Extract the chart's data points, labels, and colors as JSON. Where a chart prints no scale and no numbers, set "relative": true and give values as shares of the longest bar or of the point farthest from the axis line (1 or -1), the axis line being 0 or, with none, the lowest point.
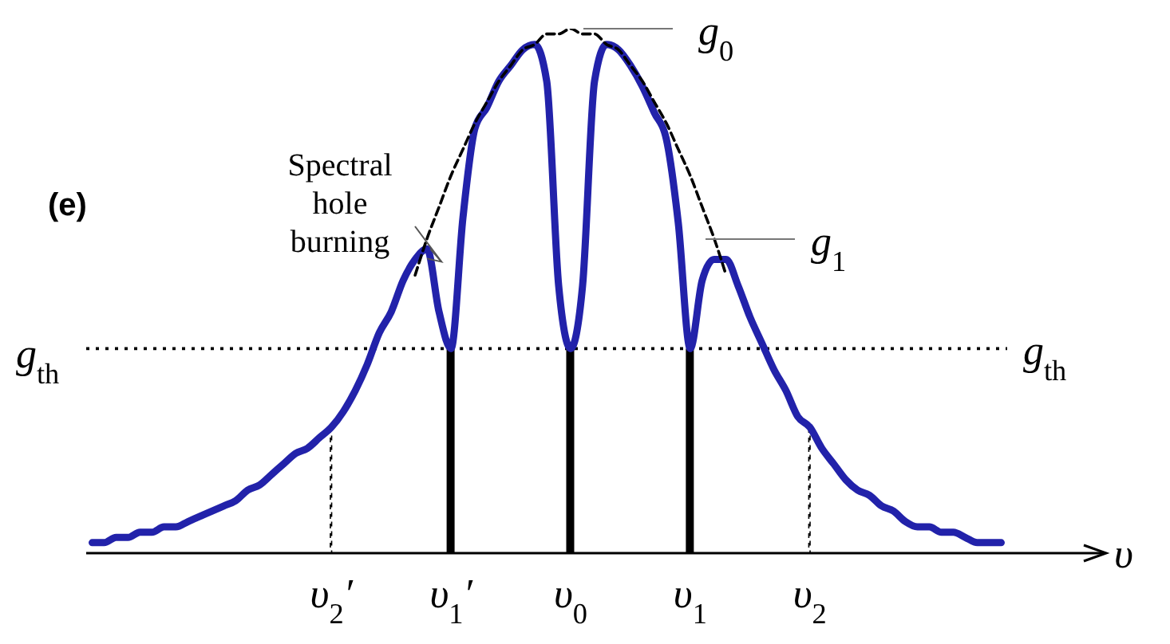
{
  "chart_data": {
    "type": "line",
    "relative": true,
    "tick_labels": "x",
    "marker": "none",
    "xlabel": "υ",
    "categories": [
      null,
      null,
      null,
      null,
      null,
      null,
      null,
      null,
      null,
      null,
      null,
      null,
      null,
      null,
      null,
      null,
      null,
      null,
      null,
      null,
      "υ$_{2}$′",
      null,
      null,
      null,
      null,
      null,
      null,
      null,
      null,
      null,
      "υ$_{1}$′",
      null,
      null,
      null,
      null,
      null,
      null,
      null,
      null,
      null,
      "υ$_{0}$",
      null,
      null,
      null,
      null,
      null,
      null,
      null,
      null,
      null,
      "υ$_{1}$",
      null,
      null,
      null,
      null,
      null,
      null,
      null,
      null,
      null,
      "υ$_{2}$",
      null,
      null,
      null,
      null,
      null,
      null,
      null,
      null,
      null,
      null,
      null,
      null,
      null,
      null,
      null,
      null
    ],
    "series": [
      {
        "color": "#2222aa",
        "line_style": "solid",
        "values": [
          0.02,
          0.02,
          0.03,
          0.03,
          0.04,
          0.04,
          0.05,
          0.05,
          0.06,
          0.07,
          0.08,
          0.09,
          0.1,
          0.12,
          0.13,
          0.15,
          0.17,
          0.19,
          0.2,
          0.22,
          0.24,
          0.27,
          0.31,
          0.36,
          0.42,
          0.46,
          0.52,
          0.56,
          0.58,
          0.46,
          0.39,
          0.64,
          0.81,
          0.85,
          0.9,
          0.93,
          0.96,
          0.97,
          0.9,
          0.51,
          0.39,
          0.51,
          0.9,
          0.97,
          0.96,
          0.93,
          0.89,
          0.84,
          0.79,
          0.63,
          0.39,
          0.52,
          0.56,
          0.56,
          0.51,
          0.45,
          0.4,
          0.35,
          0.31,
          0.26,
          0.24,
          0.2,
          0.17,
          0.14,
          0.12,
          0.11,
          0.09,
          0.08,
          0.06,
          0.05,
          0.05,
          0.04,
          0.04,
          0.03,
          0.02,
          0.02,
          0.02
        ]
      },
      {
        "color": "#000000",
        "line_style": "dashed",
        "values": [
          null,
          null,
          null,
          null,
          null,
          null,
          null,
          null,
          null,
          null,
          null,
          null,
          null,
          null,
          null,
          null,
          null,
          null,
          null,
          null,
          null,
          null,
          null,
          null,
          null,
          null,
          null,
          0.53,
          0.6,
          0.66,
          0.72,
          0.77,
          0.82,
          0.86,
          0.9,
          0.93,
          0.96,
          0.97,
          0.99,
          0.99,
          1,
          0.99,
          0.99,
          0.97,
          0.96,
          0.93,
          0.9,
          0.86,
          0.82,
          0.77,
          0.72,
          0.66,
          0.6,
          0.53,
          null,
          null,
          null,
          null,
          null,
          null,
          null,
          null,
          null,
          null,
          null,
          null,
          null,
          null,
          null,
          null,
          null,
          null,
          null,
          null,
          null,
          null,
          null
        ]
      },
      {
        "type": "bar",
        "color": "#000000",
        "line_style": "solid",
        "values": [
          null,
          null,
          null,
          null,
          null,
          null,
          null,
          null,
          null,
          null,
          null,
          null,
          null,
          null,
          null,
          null,
          null,
          null,
          null,
          null,
          null,
          null,
          null,
          null,
          null,
          null,
          null,
          null,
          null,
          null,
          0.39,
          null,
          null,
          null,
          null,
          null,
          null,
          null,
          null,
          null,
          0.39,
          null,
          null,
          null,
          null,
          null,
          null,
          null,
          null,
          null,
          0.39,
          null,
          null,
          null,
          null,
          null,
          null,
          null,
          null,
          null,
          null,
          null,
          null,
          null,
          null,
          null,
          null,
          null,
          null,
          null,
          null,
          null,
          null,
          null,
          null,
          null,
          null
        ]
      },
      {
        "type": "bar",
        "color": "#000000",
        "line_style": "dashed",
        "values": [
          null,
          null,
          null,
          null,
          null,
          null,
          null,
          null,
          null,
          null,
          null,
          null,
          null,
          null,
          null,
          null,
          null,
          null,
          null,
          null,
          0.24,
          null,
          null,
          null,
          null,
          null,
          null,
          null,
          null,
          null,
          null,
          null,
          null,
          null,
          null,
          null,
          null,
          null,
          null,
          null,
          null,
          null,
          null,
          null,
          null,
          null,
          null,
          null,
          null,
          null,
          null,
          null,
          null,
          null,
          null,
          null,
          null,
          null,
          null,
          null,
          0.24,
          null,
          null,
          null,
          null,
          null,
          null,
          null,
          null,
          null,
          null,
          null,
          null,
          null,
          null,
          null,
          null
        ]
      }
    ],
    "ref_lines": [
      {
        "axis": "y",
        "value": 0.39,
        "label": "g$_{th}$",
        "color": "#000000",
        "line_style": "dotted"
      }
    ],
    "annotations": [
      "(e)",
      {
        "text": "Spectral hole burning",
        "x": "υ$_{1}$′",
        "y": 0.58
      },
      {
        "text": "g$_{0}$",
        "x": "υ$_{0}$",
        "y": 1
      },
      "g$_{1}$",
      "g$_{th}$"
    ]
  }
}
